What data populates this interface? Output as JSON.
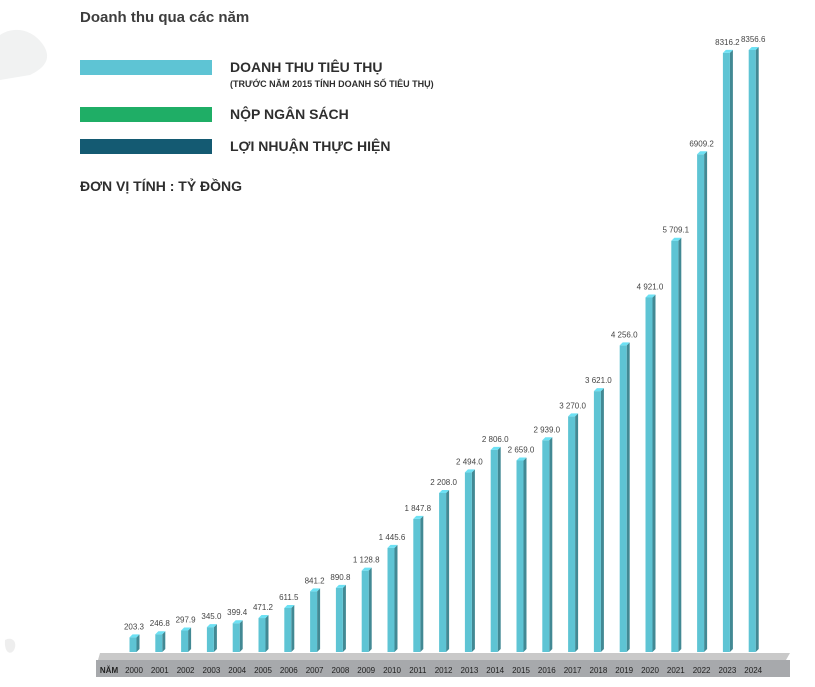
{
  "page": {
    "title": "Doanh thu qua các năm",
    "unit_label": "ĐƠN VỊ TÍNH : TỶ ĐỒNG"
  },
  "legend": [
    {
      "label": "DOANH THU TIÊU THỤ",
      "sublabel": "(TRƯỚC NĂM 2015 TÍNH DOANH SỐ TIÊU THỤ)",
      "color": "#5ec4d4"
    },
    {
      "label": "NỘP NGÂN SÁCH",
      "sublabel": "",
      "color": "#1fae66"
    },
    {
      "label": "LỢI NHUẬN THỰC HIỆN",
      "sublabel": "",
      "color": "#145a72"
    }
  ],
  "chart_data": {
    "type": "bar",
    "x_axis_title": "NĂM",
    "categories": [
      "2000",
      "2001",
      "2002",
      "2003",
      "2004",
      "2005",
      "2006",
      "2007",
      "2008",
      "2009",
      "2010",
      "2011",
      "2012",
      "2013",
      "2014",
      "2015",
      "2016",
      "2017",
      "2018",
      "2019",
      "2020",
      "2021",
      "2022",
      "2023",
      "2024"
    ],
    "series": [
      {
        "name": "DOANH THU TIÊU THỤ",
        "color": "#5ec4d4",
        "values": [
          203.3,
          246.8,
          297.9,
          345.0,
          399.4,
          471.2,
          611.5,
          841.2,
          890.8,
          1128.8,
          1445.6,
          1847.8,
          2208.0,
          2494.0,
          2806.0,
          2659.0,
          2939.0,
          3270.0,
          3621.0,
          4256.0,
          4921.0,
          5709.1,
          6909.2,
          8316.2,
          8356.6
        ],
        "labels": [
          "203.3",
          "246.8",
          "297.9",
          "345.0",
          "399.4",
          "471.2",
          "611.5",
          "841.2",
          "890.8",
          "1 128.8",
          "1 445.6",
          "1 847.8",
          "2 208.0",
          "2 494.0",
          "2 806.0",
          "2 659.0",
          "2 939.0",
          "3 270.0",
          "3 621.0",
          "4 256.0",
          "4 921.0",
          "5 709.1",
          "6909.2",
          "8316.2",
          "8356.6"
        ]
      },
      {
        "name": "NỘP NGÂN SÁCH",
        "color": "#1fae66"
      },
      {
        "name": "LỢI NHUẬN THỰC HIỆN",
        "color": "#145a72"
      }
    ]
  }
}
